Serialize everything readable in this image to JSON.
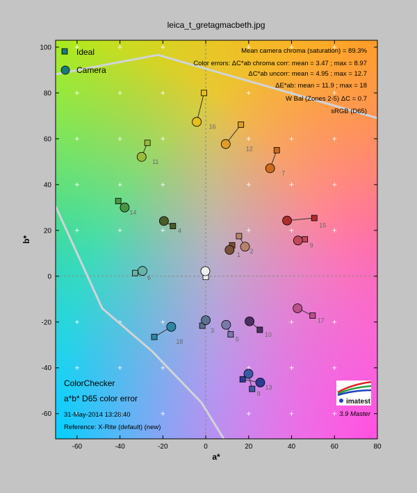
{
  "chart_data": {
    "type": "scatter",
    "title": "leica_t_gretagmacbeth.jpg",
    "xlabel": "a*",
    "ylabel": "b*",
    "xlim": [
      -70,
      80
    ],
    "ylim": [
      -71,
      103
    ],
    "xticks": [
      -60,
      -40,
      -20,
      0,
      20,
      40,
      60,
      80
    ],
    "yticks": [
      -60,
      -40,
      -20,
      0,
      20,
      40,
      60,
      80,
      100
    ],
    "grid": true,
    "legend": {
      "position": "top-left",
      "entries": [
        {
          "name": "Ideal",
          "marker": "square"
        },
        {
          "name": "Camera",
          "marker": "circle"
        }
      ]
    },
    "stats": [
      "Mean camera chroma (saturation) = 89.3%",
      "Color errors: ΔC*ab chroma corr:  mean = 3.47 ;  max = 8.97",
      "ΔC*ab uncorr:  mean = 4.95 ;  max = 12.7",
      "ΔE*ab:  mean = 11.9 ;  max = 18",
      "W Bal (Zones 2-5)  ΔC = 0.7",
      "sRGB (D65)"
    ],
    "info": {
      "name": "ColorChecker",
      "subtitle": "a*b* D65 color error",
      "date": "31-May-2014 13:28:40",
      "reference": "Reference: X-Rite (default) (new)"
    },
    "logo": {
      "text": "imatest",
      "version": "3.9  Master"
    },
    "patches": [
      {
        "id": "1",
        "ideal": [
          12.3,
          13.5
        ],
        "camera": [
          11.1,
          11.5
        ],
        "color": "#7a5038"
      },
      {
        "id": "2",
        "ideal": [
          15.5,
          17.5
        ],
        "camera": [
          18.3,
          12.9
        ],
        "color": "#b8826a"
      },
      {
        "id": "3",
        "ideal": [
          -1.6,
          -21.6
        ],
        "camera": [
          0.0,
          -19.2
        ],
        "color": "#5d7190"
      },
      {
        "id": "4",
        "ideal": [
          -15.3,
          21.9
        ],
        "camera": [
          -19.5,
          24.1
        ],
        "color": "#4c5b2a"
      },
      {
        "id": "5",
        "ideal": [
          11.6,
          -25.4
        ],
        "camera": [
          9.5,
          -21.2
        ],
        "color": "#7a7aaa"
      },
      {
        "id": "6",
        "ideal": [
          -32.9,
          1.4
        ],
        "camera": [
          -29.5,
          2.3
        ],
        "color": "#68b4a6"
      },
      {
        "id": "7",
        "ideal": [
          33.1,
          55.0
        ],
        "camera": [
          30.0,
          47.1
        ],
        "color": "#cc6a1e"
      },
      {
        "id": "8",
        "ideal": [
          21.6,
          -49.2
        ],
        "camera": [
          19.9,
          -42.6
        ],
        "color": "#3a5aa6"
      },
      {
        "id": "9",
        "ideal": [
          46.2,
          16.1
        ],
        "camera": [
          43.0,
          15.6
        ],
        "color": "#c0485a"
      },
      {
        "id": "10",
        "ideal": [
          25.2,
          -23.4
        ],
        "camera": [
          20.4,
          -19.7
        ],
        "color": "#4c3064"
      },
      {
        "id": "11",
        "ideal": [
          -27.2,
          58.2
        ],
        "camera": [
          -29.9,
          52.1
        ],
        "color": "#9abc3a"
      },
      {
        "id": "12",
        "ideal": [
          16.4,
          66.2
        ],
        "camera": [
          9.3,
          57.7
        ],
        "color": "#e09c26"
      },
      {
        "id": "13",
        "ideal": [
          17.2,
          -45.0
        ],
        "camera": [
          25.4,
          -46.4
        ],
        "color": "#2a3c94"
      },
      {
        "id": "14",
        "ideal": [
          -40.8,
          32.8
        ],
        "camera": [
          -37.8,
          30.0
        ],
        "color": "#469646"
      },
      {
        "id": "15",
        "ideal": [
          50.6,
          25.4
        ],
        "camera": [
          37.9,
          24.3
        ],
        "color": "#b02c2c"
      },
      {
        "id": "16",
        "ideal": [
          -0.8,
          80.0
        ],
        "camera": [
          -4.2,
          67.4
        ],
        "color": "#e6c01e"
      },
      {
        "id": "17",
        "ideal": [
          49.8,
          -17.2
        ],
        "camera": [
          42.8,
          -14.0
        ],
        "color": "#bc508c"
      },
      {
        "id": "18",
        "ideal": [
          -24.0,
          -26.5
        ],
        "camera": [
          -16.1,
          -22.1
        ],
        "color": "#2c86a6"
      },
      {
        "id": "19",
        "ideal": [
          0.0,
          -0.3
        ],
        "camera": [
          -0.2,
          2.2
        ],
        "color": "#eeeeee"
      }
    ],
    "gamut": {
      "name": "sRGB (D65)",
      "color": "#d0d4d8"
    }
  }
}
